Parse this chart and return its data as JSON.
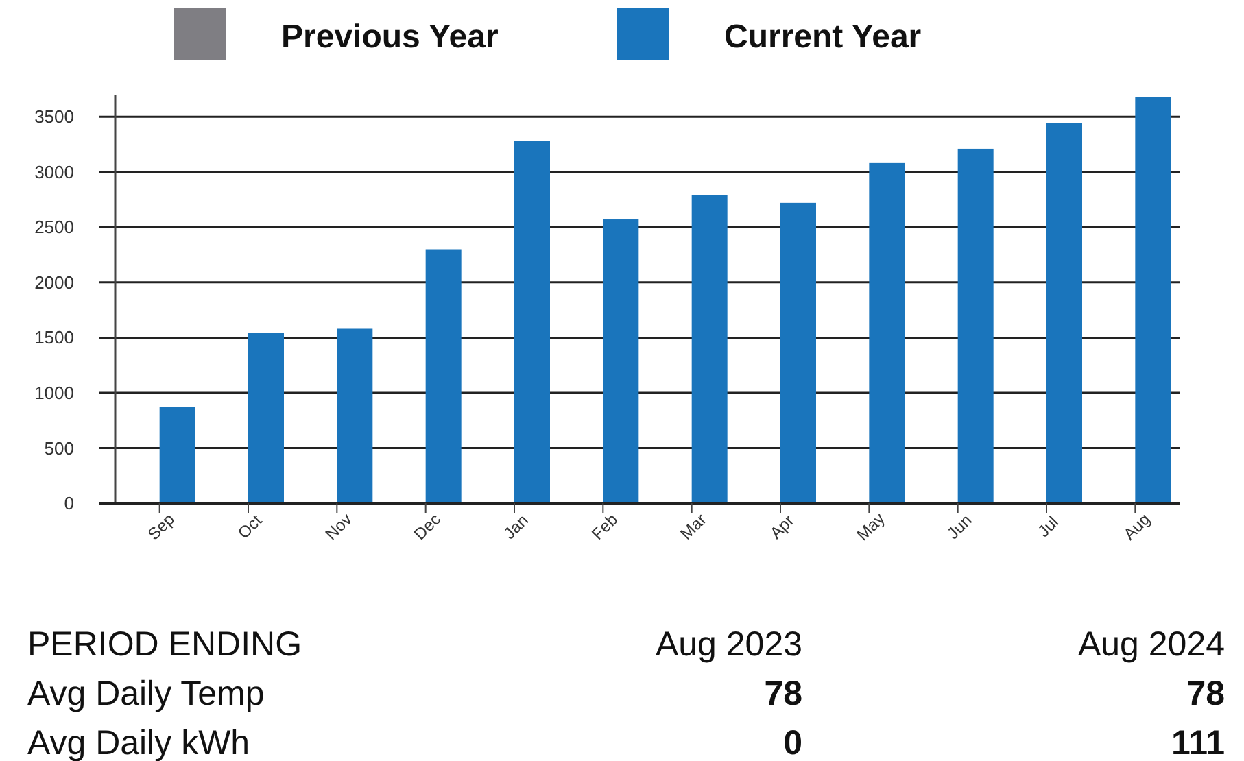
{
  "chart_data": {
    "type": "bar",
    "categories": [
      "Sep",
      "Oct",
      "Nov",
      "Dec",
      "Jan",
      "Feb",
      "Mar",
      "Apr",
      "May",
      "Jun",
      "Jul",
      "Aug"
    ],
    "series": [
      {
        "name": "Previous Year",
        "color": "#7f7e83",
        "values": [
          null,
          null,
          null,
          null,
          null,
          null,
          null,
          null,
          null,
          null,
          null,
          null
        ]
      },
      {
        "name": "Current Year",
        "color": "#1a75bc",
        "values": [
          870,
          1540,
          1580,
          2300,
          3280,
          2570,
          2790,
          2720,
          3080,
          3210,
          3440,
          3680
        ]
      }
    ],
    "ylim": [
      0,
      3700
    ],
    "yticks": [
      0,
      500,
      1000,
      1500,
      2000,
      2500,
      3000,
      3500
    ],
    "grid": "y",
    "legend": "top",
    "annotations": [
      "PERIOD ENDING",
      "Aug 2023",
      "Aug 2024",
      "Avg Daily Temp",
      "78",
      "78",
      "Avg Daily kWh",
      "0",
      "111"
    ]
  }
}
